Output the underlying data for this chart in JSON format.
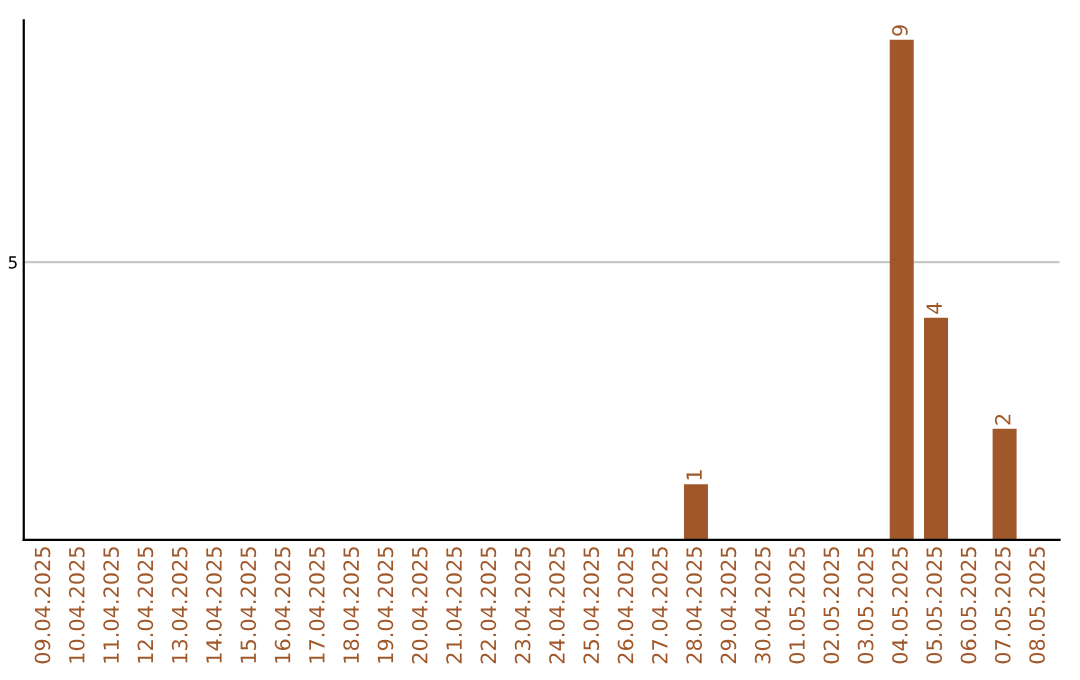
{
  "chart_data": {
    "type": "bar",
    "categories": [
      "09.04.2025",
      "10.04.2025",
      "11.04.2025",
      "12.04.2025",
      "13.04.2025",
      "14.04.2025",
      "15.04.2025",
      "16.04.2025",
      "17.04.2025",
      "18.04.2025",
      "19.04.2025",
      "20.04.2025",
      "21.04.2025",
      "22.04.2025",
      "23.04.2025",
      "24.04.2025",
      "25.04.2025",
      "26.04.2025",
      "27.04.2025",
      "28.04.2025",
      "29.04.2025",
      "30.04.2025",
      "01.05.2025",
      "02.05.2025",
      "03.05.2025",
      "04.05.2025",
      "05.05.2025",
      "06.05.2025",
      "07.05.2025",
      "08.05.2025"
    ],
    "values": [
      null,
      null,
      null,
      null,
      null,
      null,
      null,
      null,
      null,
      null,
      null,
      null,
      null,
      null,
      null,
      null,
      null,
      null,
      null,
      1,
      null,
      null,
      null,
      null,
      null,
      9,
      4,
      null,
      2,
      null
    ],
    "value_labels": [
      null,
      null,
      null,
      null,
      null,
      null,
      null,
      null,
      null,
      null,
      null,
      null,
      null,
      null,
      null,
      null,
      null,
      null,
      null,
      "1",
      null,
      null,
      null,
      null,
      null,
      "9",
      "4",
      null,
      "2",
      null
    ],
    "color": "#a0582a",
    "ylim": [
      0,
      9.35
    ],
    "yticks": [
      5
    ],
    "grid": "y"
  }
}
